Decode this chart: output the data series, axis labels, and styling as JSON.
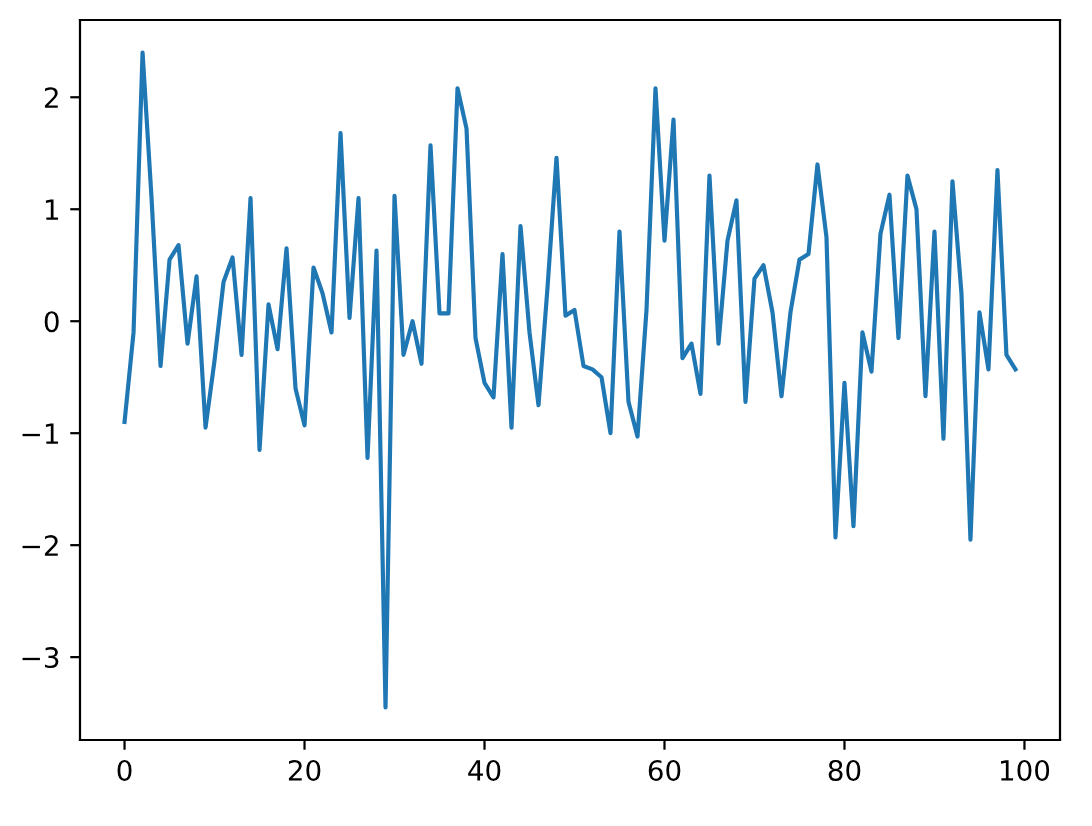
{
  "chart_data": {
    "type": "line",
    "x": [
      0,
      1,
      2,
      3,
      4,
      5,
      6,
      7,
      8,
      9,
      10,
      11,
      12,
      13,
      14,
      15,
      16,
      17,
      18,
      19,
      20,
      21,
      22,
      23,
      24,
      25,
      26,
      27,
      28,
      29,
      30,
      31,
      32,
      33,
      34,
      35,
      36,
      37,
      38,
      39,
      40,
      41,
      42,
      43,
      44,
      45,
      46,
      47,
      48,
      49,
      50,
      51,
      52,
      53,
      54,
      55,
      56,
      57,
      58,
      59,
      60,
      61,
      62,
      63,
      64,
      65,
      66,
      67,
      68,
      69,
      70,
      71,
      72,
      73,
      74,
      75,
      76,
      77,
      78,
      79,
      80,
      81,
      82,
      83,
      84,
      85,
      86,
      87,
      88,
      89,
      90,
      91,
      92,
      93,
      94,
      95,
      96,
      97,
      98,
      99
    ],
    "series": [
      {
        "color": "#1f77b4",
        "values": [
          -0.9,
          -0.1,
          2.4,
          1.1,
          -0.4,
          0.55,
          0.68,
          -0.2,
          0.4,
          -0.95,
          -0.35,
          0.35,
          0.57,
          -0.3,
          1.1,
          -1.15,
          0.15,
          -0.25,
          0.65,
          -0.6,
          -0.93,
          0.48,
          0.25,
          -0.1,
          1.68,
          0.03,
          1.1,
          -1.22,
          0.63,
          -3.45,
          1.12,
          -0.3,
          0.0,
          -0.38,
          1.57,
          0.07,
          0.07,
          2.08,
          1.72,
          -0.15,
          -0.55,
          -0.68,
          0.6,
          -0.95,
          0.85,
          -0.1,
          -0.75,
          0.3,
          1.46,
          0.05,
          0.1,
          -0.4,
          -0.43,
          -0.5,
          -1.0,
          0.8,
          -0.72,
          -1.03,
          0.1,
          2.08,
          0.72,
          1.8,
          -0.33,
          -0.2,
          -0.65,
          1.3,
          -0.2,
          0.72,
          1.08,
          -0.72,
          0.38,
          0.5,
          0.08,
          -0.67,
          0.08,
          0.55,
          0.6,
          1.4,
          0.75,
          -1.93,
          -0.55,
          -1.83,
          -0.1,
          -0.45,
          0.78,
          1.13,
          -0.15,
          1.3,
          1.0,
          -0.67,
          0.8,
          -1.05,
          1.25,
          0.25,
          -1.95,
          0.08,
          -0.43,
          1.35,
          -0.3,
          -0.43
        ]
      }
    ],
    "xlim": [
      -4.95,
      103.95
    ],
    "ylim": [
      -3.74,
      2.69
    ],
    "xticks": [
      0,
      20,
      40,
      60,
      80,
      100
    ],
    "yticks": [
      {
        "value": -3,
        "label": "−3"
      },
      {
        "value": -2,
        "label": "−2"
      },
      {
        "value": -1,
        "label": "−1"
      },
      0,
      1,
      2
    ],
    "marker": "none",
    "line_style": "solid"
  }
}
